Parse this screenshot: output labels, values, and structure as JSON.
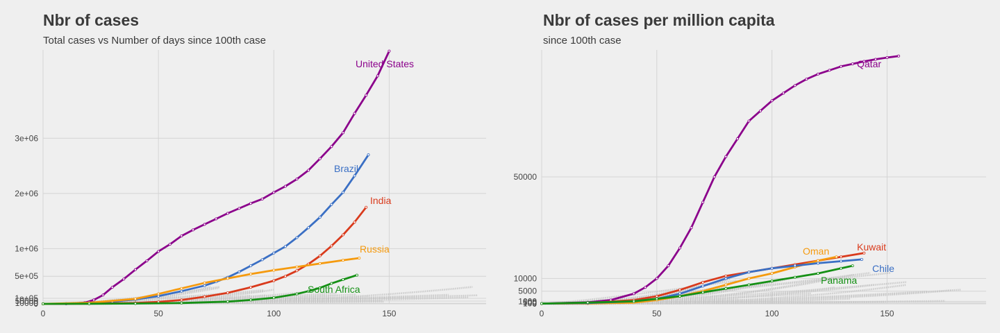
{
  "chart_data": [
    {
      "type": "line",
      "title": "Nbr of cases",
      "subtitle": "Total cases vs Number of days since 100th case",
      "xlabel": "",
      "ylabel": "",
      "xlim": [
        0,
        192
      ],
      "ylim": [
        0,
        4600000
      ],
      "x_ticks": [
        0,
        50,
        100,
        150
      ],
      "x_tick_labels": [
        "0",
        "50",
        "100",
        "150"
      ],
      "y_ticks": [
        0,
        10000,
        50000,
        100000,
        500000,
        1000000,
        2000000,
        3000000
      ],
      "y_tick_labels": [
        "0",
        "10000",
        "50000",
        "1e+05",
        "5e+05",
        "1e+06",
        "2e+06",
        "3e+06"
      ],
      "grid": true,
      "series": [
        {
          "name": "United States",
          "color": "#8b008b",
          "x": [
            0,
            10,
            18,
            22,
            26,
            30,
            35,
            40,
            45,
            50,
            55,
            60,
            65,
            70,
            75,
            80,
            85,
            90,
            95,
            100,
            105,
            110,
            115,
            120,
            125,
            130,
            135,
            140,
            145,
            150
          ],
          "y": [
            100,
            2000,
            20000,
            70000,
            160000,
            300000,
            450000,
            620000,
            780000,
            950000,
            1080000,
            1230000,
            1340000,
            1440000,
            1540000,
            1640000,
            1730000,
            1820000,
            1900000,
            2020000,
            2130000,
            2260000,
            2420000,
            2630000,
            2850000,
            3100000,
            3450000,
            3780000,
            4130000,
            4580000
          ]
        },
        {
          "name": "Brazil",
          "color": "#3a6fc4",
          "x": [
            0,
            10,
            20,
            30,
            40,
            50,
            60,
            70,
            75,
            80,
            85,
            90,
            95,
            100,
            105,
            110,
            115,
            120,
            125,
            130,
            135,
            141
          ],
          "y": [
            100,
            3000,
            10000,
            40000,
            80000,
            140000,
            230000,
            330000,
            400000,
            480000,
            580000,
            690000,
            800000,
            920000,
            1040000,
            1200000,
            1380000,
            1570000,
            1800000,
            2020000,
            2320000,
            2700000
          ]
        },
        {
          "name": "India",
          "color": "#d93a1c",
          "x": [
            0,
            20,
            40,
            50,
            60,
            70,
            80,
            90,
            100,
            105,
            110,
            115,
            120,
            125,
            130,
            135,
            140
          ],
          "y": [
            100,
            4000,
            15000,
            35000,
            70000,
            130000,
            200000,
            300000,
            420000,
            500000,
            600000,
            720000,
            870000,
            1050000,
            1250000,
            1480000,
            1750000
          ]
        },
        {
          "name": "Russia",
          "color": "#f59a0e",
          "x": [
            0,
            20,
            40,
            50,
            60,
            70,
            80,
            90,
            100,
            110,
            120,
            130,
            137
          ],
          "y": [
            100,
            20000,
            90000,
            180000,
            280000,
            380000,
            460000,
            540000,
            610000,
            670000,
            730000,
            790000,
            830000
          ]
        },
        {
          "name": "South Africa",
          "color": "#159015",
          "x": [
            0,
            20,
            40,
            60,
            80,
            90,
            100,
            110,
            115,
            120,
            125,
            130,
            136
          ],
          "y": [
            100,
            2000,
            6000,
            15000,
            40000,
            70000,
            110000,
            180000,
            230000,
            290000,
            370000,
            440000,
            520000
          ]
        }
      ],
      "labels": [
        {
          "text": "United States",
          "color": "#8b008b"
        },
        {
          "text": "Brazil",
          "color": "#3a6fc4"
        },
        {
          "text": "India",
          "color": "#d93a1c"
        },
        {
          "text": "Russia",
          "color": "#f59a0e"
        },
        {
          "text": "South Africa",
          "color": "#159015"
        }
      ],
      "background_series_color": "#c4c4c4"
    },
    {
      "type": "line",
      "title": "Nbr of cases per million capita",
      "subtitle": "since 100th case",
      "xlabel": "",
      "ylabel": "",
      "xlim": [
        0,
        193
      ],
      "ylim": [
        0,
        100000
      ],
      "x_ticks": [
        0,
        50,
        100,
        150
      ],
      "x_tick_labels": [
        "0",
        "50",
        "100",
        "150"
      ],
      "y_ticks": [
        0,
        100,
        500,
        1000,
        5000,
        10000,
        50000
      ],
      "y_tick_labels": [
        "0",
        "100",
        "500",
        "1000",
        "5000",
        "10000",
        "50000"
      ],
      "grid": true,
      "series": [
        {
          "name": "Qatar",
          "color": "#8b008b",
          "x": [
            0,
            20,
            30,
            40,
            45,
            50,
            55,
            60,
            65,
            70,
            75,
            80,
            85,
            90,
            95,
            100,
            105,
            110,
            115,
            120,
            125,
            130,
            135,
            140,
            145,
            150,
            155
          ],
          "y": [
            100,
            600,
            1500,
            4000,
            6500,
            10000,
            15000,
            22000,
            30000,
            40000,
            50000,
            58000,
            65000,
            72000,
            76000,
            80000,
            83000,
            86000,
            88500,
            90500,
            92000,
            93500,
            94500,
            95500,
            96300,
            97000,
            97600
          ]
        },
        {
          "name": "Kuwait",
          "color": "#d93a1c",
          "x": [
            0,
            20,
            40,
            50,
            60,
            70,
            80,
            90,
            100,
            110,
            120,
            130,
            140
          ],
          "y": [
            100,
            300,
            1500,
            3000,
            5500,
            8500,
            11000,
            12500,
            14000,
            15500,
            17000,
            18500,
            20000
          ]
        },
        {
          "name": "Oman",
          "color": "#f59a0e",
          "x": [
            0,
            20,
            40,
            50,
            60,
            70,
            80,
            90,
            100,
            110,
            120,
            128
          ],
          "y": [
            100,
            150,
            500,
            1500,
            3000,
            5000,
            7500,
            10000,
            12000,
            14500,
            17000,
            18500
          ]
        },
        {
          "name": "Chile",
          "color": "#3a6fc4",
          "x": [
            0,
            20,
            40,
            50,
            60,
            70,
            80,
            90,
            100,
            110,
            120,
            130,
            139
          ],
          "y": [
            100,
            300,
            1000,
            2000,
            4000,
            7000,
            10000,
            12500,
            14000,
            15000,
            16000,
            16800,
            17500
          ]
        },
        {
          "name": "Panama",
          "color": "#159015",
          "x": [
            0,
            20,
            40,
            50,
            60,
            70,
            80,
            90,
            100,
            110,
            120,
            130,
            135
          ],
          "y": [
            100,
            500,
            1000,
            2000,
            3000,
            4500,
            6000,
            7500,
            9000,
            10500,
            12000,
            14000,
            15000
          ]
        }
      ],
      "labels": [
        {
          "text": "Qatar",
          "color": "#8b008b"
        },
        {
          "text": "Kuwait",
          "color": "#d93a1c"
        },
        {
          "text": "Oman",
          "color": "#f59a0e"
        },
        {
          "text": "Chile",
          "color": "#3a6fc4"
        },
        {
          "text": "Panama",
          "color": "#159015"
        }
      ],
      "background_series_color": "#c4c4c4"
    }
  ]
}
